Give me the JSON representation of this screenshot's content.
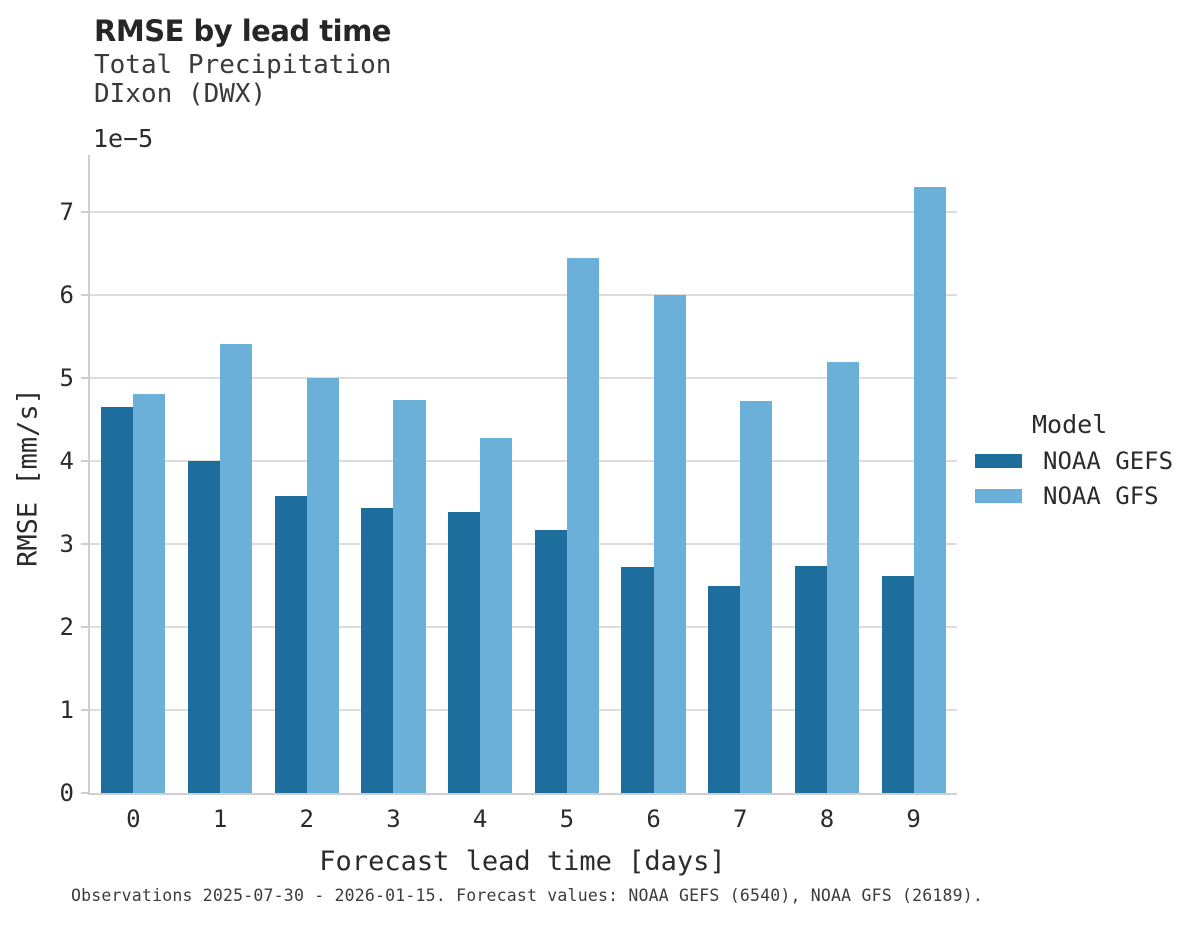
{
  "chart_data": {
    "type": "bar",
    "title": "RMSE by lead time",
    "subtitle_line1": "Total Precipitation",
    "subtitle_line2": "DIxon (DWX)",
    "offset_label": "1e−5",
    "xlabel": "Forecast lead time [days]",
    "ylabel": "RMSE [mm/s]",
    "legend_title": "Model",
    "legend_position": "right",
    "grid": "horizontal",
    "y_scale_factor": "1e-5",
    "categories": [
      "0",
      "1",
      "2",
      "3",
      "4",
      "5",
      "6",
      "7",
      "8",
      "9"
    ],
    "yticks": [
      0,
      1,
      2,
      3,
      4,
      5,
      6,
      7
    ],
    "ylim": [
      0,
      7.69
    ],
    "series": [
      {
        "name": "NOAA GEFS",
        "color": "#1d6d9d",
        "values": [
          4.65,
          4.0,
          3.58,
          3.44,
          3.39,
          3.17,
          2.73,
          2.5,
          2.74,
          2.62
        ]
      },
      {
        "name": "NOAA GFS",
        "color": "#6bb0d9",
        "values": [
          4.81,
          5.41,
          5.0,
          4.74,
          4.28,
          6.45,
          6.0,
          4.73,
          5.2,
          7.3
        ]
      }
    ],
    "footnote": "Observations 2025-07-30 - 2026-01-15. Forecast values: NOAA GEFS (6540), NOAA GFS (26189)."
  }
}
